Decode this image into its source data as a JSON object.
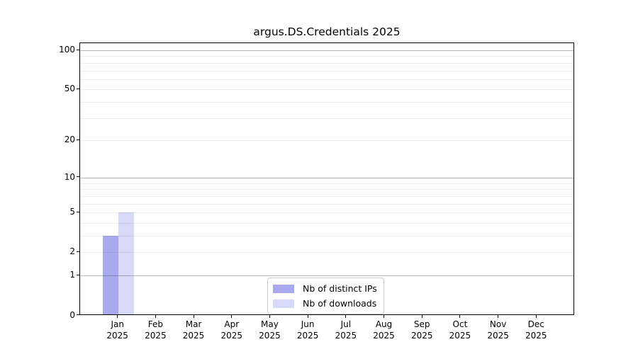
{
  "chart_data": {
    "type": "bar",
    "title": "argus.DS.Credentials 2025",
    "categories": [
      "Jan",
      "Feb",
      "Mar",
      "Apr",
      "May",
      "Jun",
      "Jul",
      "Aug",
      "Sep",
      "Oct",
      "Nov",
      "Dec"
    ],
    "category_sublabel": "2025",
    "series": [
      {
        "name": "Nb of distinct IPs",
        "color": "#a9a9ef",
        "values": [
          3,
          0,
          0,
          0,
          0,
          0,
          0,
          0,
          0,
          0,
          0,
          0
        ]
      },
      {
        "name": "Nb of downloads",
        "color": "#d8d8f8",
        "values": [
          5,
          0,
          0,
          0,
          0,
          0,
          0,
          0,
          0,
          0,
          0,
          0
        ]
      }
    ],
    "yscale": "log1p",
    "ylim": [
      0,
      113
    ],
    "ytick_values": [
      0,
      1,
      2,
      5,
      10,
      20,
      50,
      100
    ],
    "major_gridline_values": [
      1,
      10,
      100
    ],
    "minor_gridline_values": [
      2,
      3,
      4,
      5,
      6,
      7,
      8,
      9,
      20,
      30,
      40,
      50,
      60,
      70,
      80,
      90
    ],
    "grid": true,
    "legend_position": "lower center",
    "axis_color": "#000000",
    "text_color": "#000000"
  }
}
